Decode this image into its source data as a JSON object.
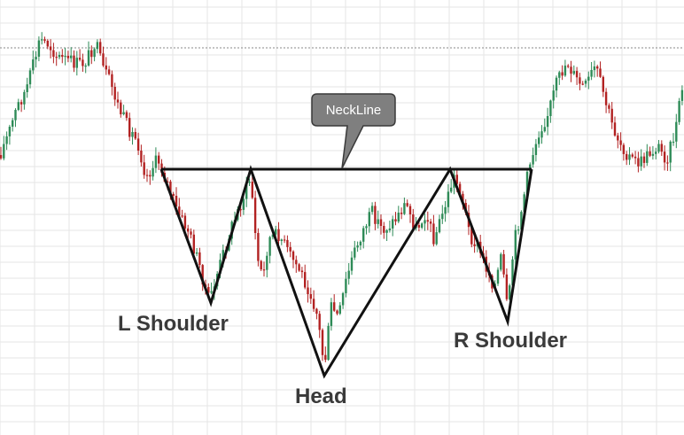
{
  "chart_data": {
    "type": "candlestick",
    "title": "",
    "xlabel": "",
    "ylabel": "",
    "grid": true,
    "up_color": "#2e8b57",
    "down_color": "#b22222",
    "pattern": "inverse-head-and-shoulders",
    "labels": {
      "left_shoulder": "L Shoulder",
      "head": "Head",
      "right_shoulder": "R Shoulder",
      "neckline": "NeckLine"
    },
    "path_points": [
      [
        0,
        175
      ],
      [
        10,
        150
      ],
      [
        20,
        120
      ],
      [
        30,
        100
      ],
      [
        38,
        72
      ],
      [
        45,
        45
      ],
      [
        55,
        50
      ],
      [
        65,
        65
      ],
      [
        75,
        68
      ],
      [
        85,
        72
      ],
      [
        95,
        72
      ],
      [
        108,
        48
      ],
      [
        115,
        75
      ],
      [
        125,
        95
      ],
      [
        135,
        125
      ],
      [
        145,
        145
      ],
      [
        155,
        160
      ],
      [
        165,
        200
      ],
      [
        178,
        180
      ],
      [
        190,
        210
      ],
      [
        200,
        240
      ],
      [
        212,
        260
      ],
      [
        225,
        300
      ],
      [
        236,
        340
      ],
      [
        248,
        300
      ],
      [
        260,
        260
      ],
      [
        272,
        230
      ],
      [
        283,
        200
      ],
      [
        290,
        290
      ],
      [
        297,
        315
      ],
      [
        303,
        270
      ],
      [
        315,
        265
      ],
      [
        325,
        285
      ],
      [
        338,
        305
      ],
      [
        350,
        330
      ],
      [
        358,
        355
      ],
      [
        366,
        415
      ],
      [
        374,
        345
      ],
      [
        382,
        360
      ],
      [
        390,
        320
      ],
      [
        398,
        290
      ],
      [
        410,
        260
      ],
      [
        420,
        240
      ],
      [
        432,
        260
      ],
      [
        445,
        250
      ],
      [
        458,
        230
      ],
      [
        470,
        260
      ],
      [
        480,
        240
      ],
      [
        490,
        270
      ],
      [
        500,
        240
      ],
      [
        512,
        200
      ],
      [
        520,
        215
      ],
      [
        530,
        265
      ],
      [
        540,
        280
      ],
      [
        550,
        305
      ],
      [
        558,
        325
      ],
      [
        566,
        290
      ],
      [
        573,
        355
      ],
      [
        580,
        275
      ],
      [
        588,
        240
      ],
      [
        598,
        185
      ],
      [
        608,
        150
      ],
      [
        618,
        130
      ],
      [
        628,
        95
      ],
      [
        640,
        70
      ],
      [
        650,
        90
      ],
      [
        660,
        100
      ],
      [
        672,
        75
      ],
      [
        682,
        110
      ],
      [
        692,
        145
      ],
      [
        702,
        165
      ],
      [
        712,
        180
      ],
      [
        722,
        185
      ],
      [
        732,
        175
      ],
      [
        742,
        165
      ],
      [
        752,
        180
      ],
      [
        762,
        150
      ],
      [
        770,
        100
      ]
    ],
    "pattern_lines": {
      "neckline": [
        [
          182,
          191
        ],
        [
          600,
          191
        ]
      ],
      "zigzag": [
        [
          182,
          191
        ],
        [
          238,
          342
        ],
        [
          283,
          191
        ],
        [
          366,
          424
        ],
        [
          508,
          191
        ],
        [
          573,
          363
        ],
        [
          600,
          191
        ]
      ]
    }
  }
}
